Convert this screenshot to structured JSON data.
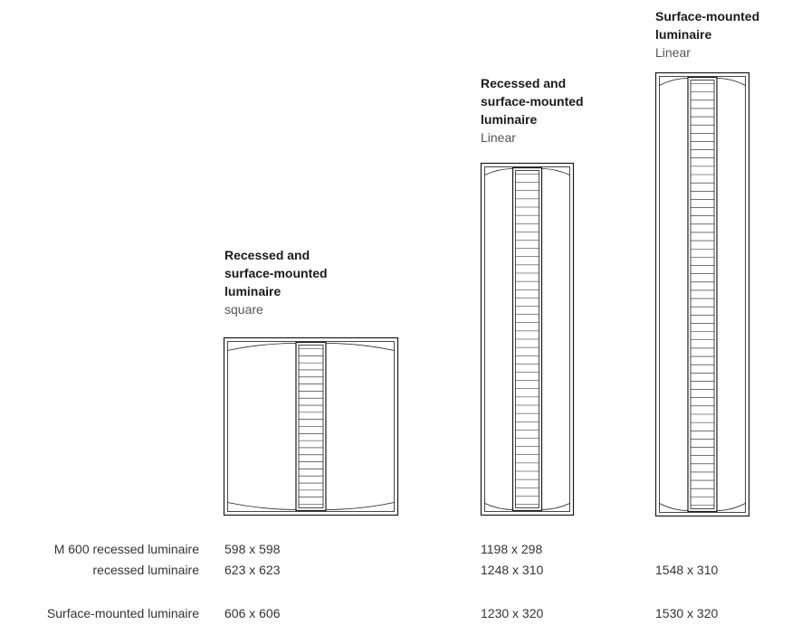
{
  "luminaires": [
    {
      "id": "square",
      "title_lines": [
        "Recessed and",
        "surface-mounted",
        "luminaire"
      ],
      "subtitle": "square",
      "louver_rows": 22
    },
    {
      "id": "linear-recessed",
      "title_lines": [
        "Recessed and",
        "surface-mounted",
        "luminaire"
      ],
      "subtitle": "Linear",
      "louver_rows": 40
    },
    {
      "id": "linear-surface",
      "title_lines": [
        "Surface-mounted",
        "luminaire"
      ],
      "subtitle": "Linear",
      "louver_rows": 51
    }
  ],
  "dimensions_table": {
    "rows": [
      {
        "label": "M 600 recessed luminaire",
        "values": [
          "598 x 598",
          "1198 x 298",
          ""
        ]
      },
      {
        "label": "recessed luminaire",
        "values": [
          "623 x 623",
          "1248 x 310",
          "1548 x 310"
        ]
      },
      {
        "label": "Surface-mounted luminaire",
        "values": [
          "606 x 606",
          "1230 x 320",
          "1530 x 320"
        ]
      }
    ]
  }
}
